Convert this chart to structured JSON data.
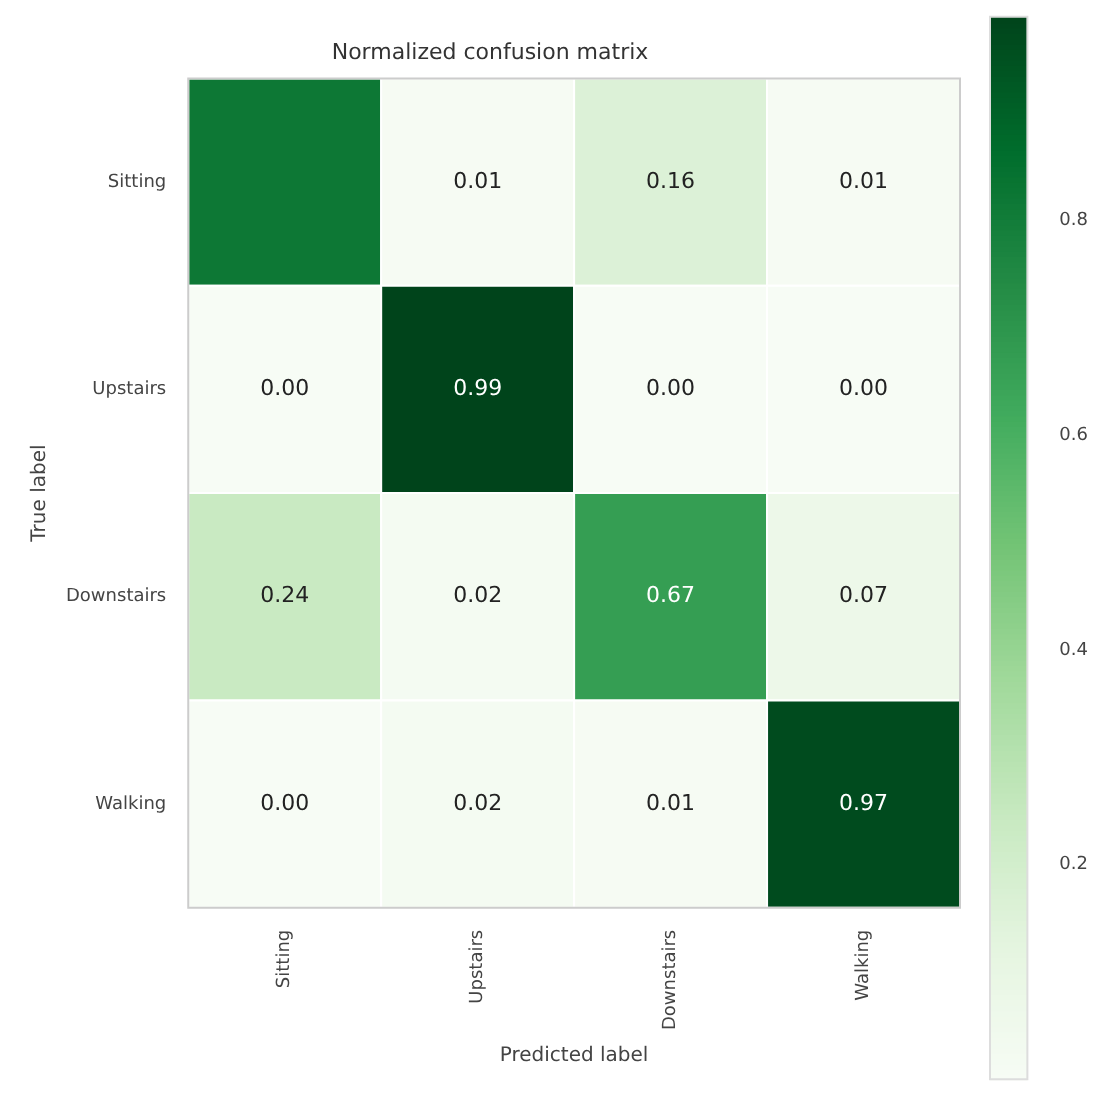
{
  "chart_data": {
    "type": "heatmap",
    "title": "Normalized confusion matrix",
    "xlabel": "Predicted label",
    "ylabel": "True label",
    "categories": [
      "Sitting",
      "Upstairs",
      "Downstairs",
      "Walking"
    ],
    "y_categories": [
      "Sitting",
      "Upstairs",
      "Downstairs",
      "Walking"
    ],
    "cells": [
      [
        0.82,
        0.01,
        0.16,
        0.01
      ],
      [
        0.0,
        0.99,
        0.0,
        0.0
      ],
      [
        0.24,
        0.02,
        0.67,
        0.07
      ],
      [
        0.0,
        0.02,
        0.01,
        0.97
      ]
    ],
    "cell_labels": [
      [
        null,
        "0.01",
        "0.16",
        "0.01"
      ],
      [
        "0.00",
        "0.99",
        "0.00",
        "0.00"
      ],
      [
        "0.24",
        "0.02",
        "0.67",
        "0.07"
      ],
      [
        "0.00",
        "0.02",
        "0.01",
        "0.97"
      ]
    ],
    "clim": [
      0,
      0.99
    ],
    "cticks": [
      0.2,
      0.4,
      0.6,
      0.8
    ]
  }
}
